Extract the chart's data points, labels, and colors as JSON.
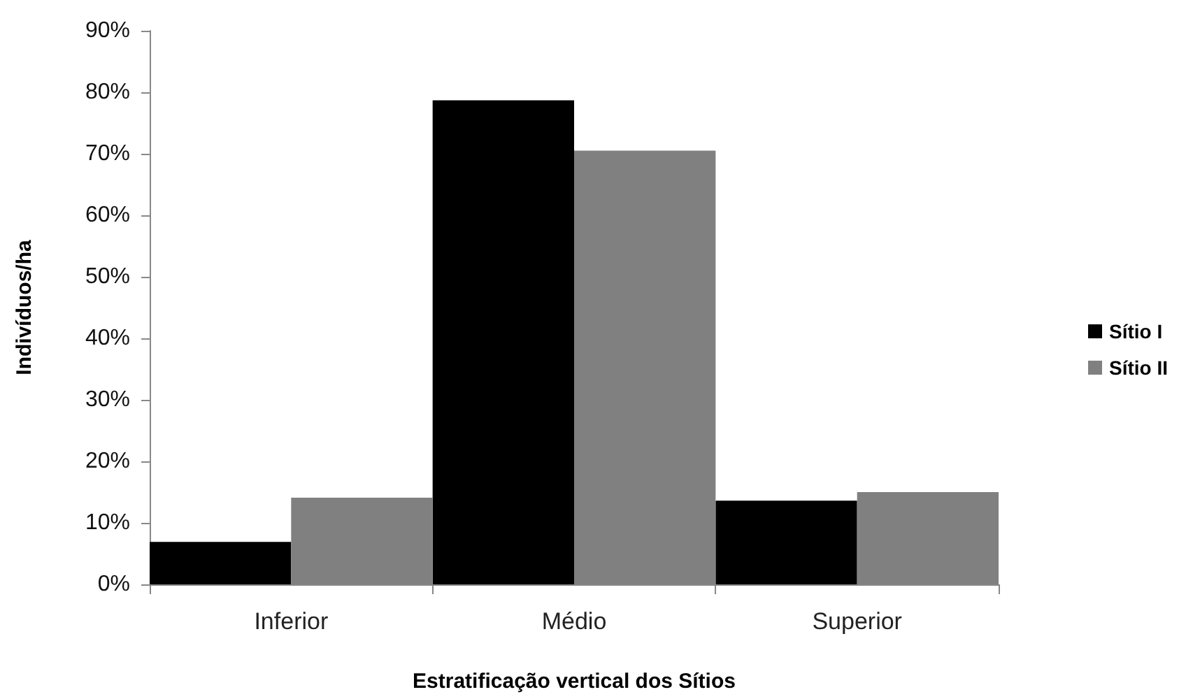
{
  "chart_data": {
    "type": "bar",
    "xlabel": "Estratificação vertical dos Sítios",
    "ylabel": "Indivíduos/ha",
    "categories": [
      "Inferior",
      "Médio",
      "Superior"
    ],
    "series": [
      {
        "name": "Sítio I",
        "color": "#000000",
        "values": [
          6.9,
          78.7,
          13.6
        ]
      },
      {
        "name": "Sítio II",
        "color": "#808080",
        "values": [
          14.1,
          70.5,
          15.0
        ]
      }
    ],
    "ylim": [
      0,
      90
    ],
    "yticks": [
      {
        "value": 0,
        "label": "0%"
      },
      {
        "value": 10,
        "label": "10%"
      },
      {
        "value": 20,
        "label": "20%"
      },
      {
        "value": 30,
        "label": "30%"
      },
      {
        "value": 40,
        "label": "40%"
      },
      {
        "value": 50,
        "label": "50%"
      },
      {
        "value": 60,
        "label": "60%"
      },
      {
        "value": 70,
        "label": "70%"
      },
      {
        "value": 80,
        "label": "80%"
      },
      {
        "value": 90,
        "label": "90%"
      }
    ],
    "legend": "right"
  }
}
